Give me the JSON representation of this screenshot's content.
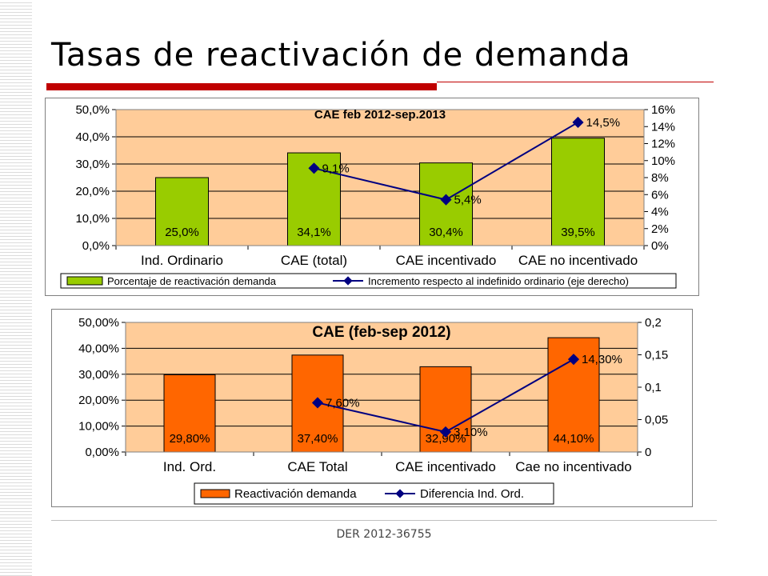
{
  "slide": {
    "title": "Tasas de reactivación de demanda",
    "footer": "DER 2012-36755"
  },
  "colors": {
    "accent_red": "#c00000",
    "bar_green": "#99cc00",
    "bar_orange": "#ff6600",
    "line_navy": "#000080",
    "plot_bg": "#ffcc99"
  },
  "chart_data": [
    {
      "type": "bar",
      "title": "CAE feb 2012-sep.2013",
      "categories": [
        "Ind. Ordinario",
        "CAE (total)",
        "CAE incentivado",
        "CAE no incentivado"
      ],
      "series": [
        {
          "name": "Porcentaje de reactivación demanda",
          "type": "bar",
          "axis": "left",
          "values": [
            25.0,
            34.1,
            30.4,
            39.5
          ],
          "labels": [
            "25,0%",
            "34,1%",
            "30,4%",
            "39,5%"
          ]
        },
        {
          "name": "Incremento respecto al indefinido ordinario (eje derecho)",
          "type": "line",
          "axis": "right",
          "values": [
            null,
            9.1,
            5.4,
            14.5
          ],
          "labels": [
            "",
            "9,1%",
            "5,4%",
            "14,5%"
          ]
        }
      ],
      "ylim": [
        0,
        50
      ],
      "y_ticks": [
        "0,0%",
        "10,0%",
        "20,0%",
        "30,0%",
        "40,0%",
        "50,0%"
      ],
      "y2lim": [
        0,
        16
      ],
      "y2_ticks": [
        "0%",
        "2%",
        "4%",
        "6%",
        "8%",
        "10%",
        "12%",
        "14%",
        "16%"
      ],
      "grid": true,
      "legend": "bottom"
    },
    {
      "type": "bar",
      "title": "CAE (feb-sep 2012)",
      "categories": [
        "Ind. Ord.",
        "CAE Total",
        "CAE incentivado",
        "Cae no incentivado"
      ],
      "series": [
        {
          "name": "Reactivación demanda",
          "type": "bar",
          "axis": "left",
          "values": [
            29.8,
            37.4,
            32.9,
            44.1
          ],
          "labels": [
            "29,80%",
            "37,40%",
            "32,90%",
            "44,10%"
          ]
        },
        {
          "name": "Diferencia Ind. Ord.",
          "type": "line",
          "axis": "right",
          "values": [
            null,
            0.076,
            0.031,
            0.143
          ],
          "labels": [
            "",
            "7,60%",
            "3,10%",
            "14,30%"
          ]
        }
      ],
      "ylim": [
        0,
        50
      ],
      "y_ticks": [
        "0,00%",
        "10,00%",
        "20,00%",
        "30,00%",
        "40,00%",
        "50,00%"
      ],
      "y2lim": [
        0,
        0.2
      ],
      "y2_ticks": [
        "0",
        "0,05",
        "0,1",
        "0,15",
        "0,2"
      ],
      "grid": true,
      "legend": "bottom"
    }
  ]
}
